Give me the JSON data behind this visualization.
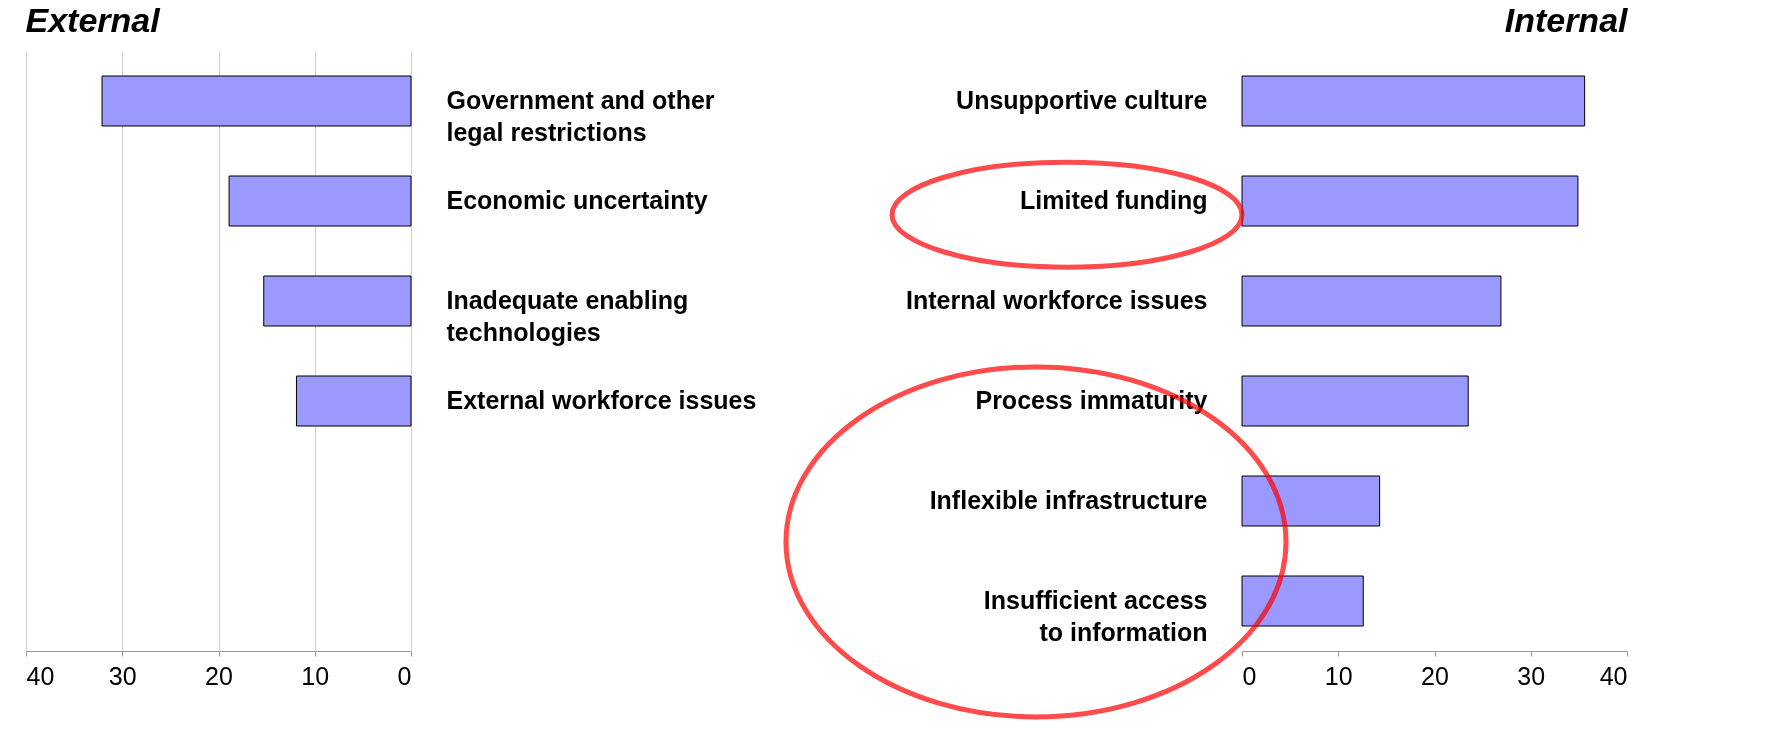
{
  "chart_data": [
    {
      "type": "bar",
      "orientation": "horizontal",
      "title": "External",
      "categories": [
        "Government and other\nlegal restrictions",
        "Economic uncertainty",
        "Inadequate enabling\ntechnologies",
        "External workforce issues",
        null,
        null
      ],
      "values": [
        32.1,
        18.9,
        15.3,
        11.9,
        null,
        null
      ],
      "color": "#9999ff",
      "xlim": [
        40,
        0
      ],
      "xticks": [
        40,
        30,
        20,
        10,
        0
      ],
      "grid": "x"
    },
    {
      "type": "bar",
      "orientation": "horizontal",
      "title": "Internal",
      "categories": [
        "Unsupportive culture",
        "Limited funding",
        "Internal workforce issues",
        "Process immaturity",
        "Inflexible infrastructure",
        "Insufficient access\nto information"
      ],
      "values": [
        35.6,
        34.9,
        26.9,
        23.5,
        14.3,
        12.6
      ],
      "color": "#9999ff",
      "xlim": [
        0,
        40
      ],
      "xticks": [
        0,
        10,
        20,
        30,
        40
      ],
      "grid": false
    }
  ]
}
